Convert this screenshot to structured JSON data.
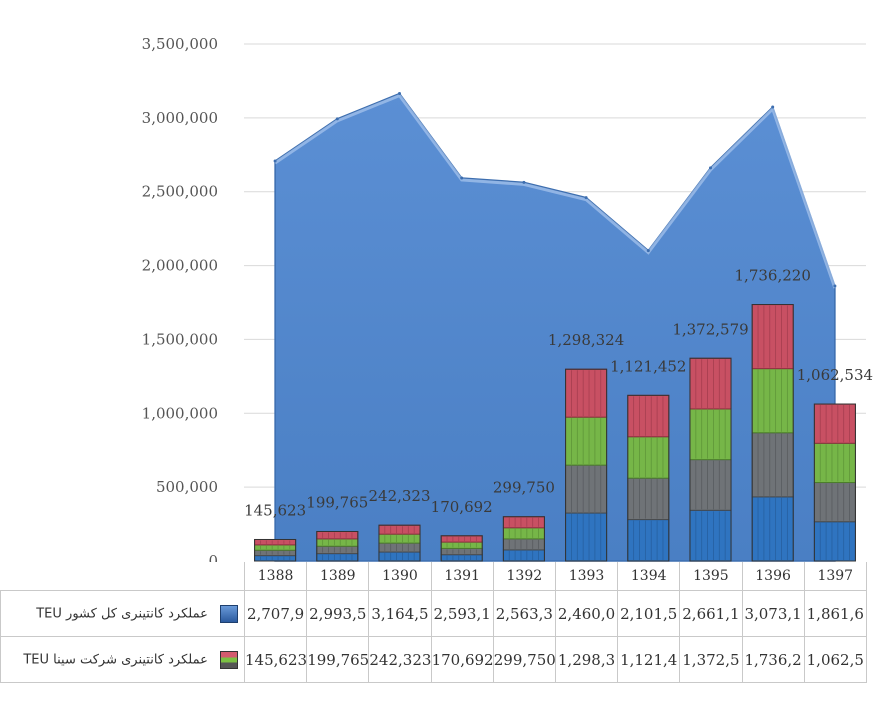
{
  "chart_data": {
    "type": "area+bar",
    "categories": [
      "1388",
      "1389",
      "1390",
      "1391",
      "1392",
      "1393",
      "1394",
      "1395",
      "1396",
      "1397"
    ],
    "ylim": [
      0,
      3500000
    ],
    "yticks": [
      "0",
      "500,000",
      "1,000,000",
      "1,500,000",
      "2,000,000",
      "2,500,000",
      "3,000,000",
      "3,500,000"
    ],
    "grid": true,
    "series": [
      {
        "name": "عملکرد کانتینری کل کشور TEU",
        "kind": "area",
        "color": "#4f86cc",
        "values": [
          2707900,
          2993500,
          3164500,
          2593100,
          2563300,
          2460000,
          2101500,
          2661100,
          3073100,
          1861600
        ],
        "table_labels": [
          "2,707,9",
          "2,993,5",
          "3,164,5",
          "2,593,1",
          "2,563,3",
          "2,460,0",
          "2,101,5",
          "2,661,1",
          "3,073,1",
          "1,861,6"
        ]
      },
      {
        "name": "عملکرد کانتینری شرکت سینا TEU",
        "kind": "bar",
        "values": [
          145623,
          199765,
          242323,
          170692,
          299750,
          1298324,
          1121452,
          1372579,
          1736220,
          1062534
        ],
        "data_labels": [
          "145,623",
          "199,765",
          "242,323",
          "170,692",
          "299,750",
          "1,298,324",
          "1,121,452",
          "1,372,579",
          "1,736,220",
          "1,062,534"
        ],
        "table_labels": [
          "145,623",
          "199,765",
          "242,323",
          "170,692",
          "299,750",
          "1,298,3",
          "1,121,4",
          "1,372,5",
          "1,736,2",
          "1,062,5"
        ]
      }
    ]
  },
  "legend": {
    "area_icon": "blue-area-swatch",
    "bar_icon": "container-stack-swatch"
  }
}
